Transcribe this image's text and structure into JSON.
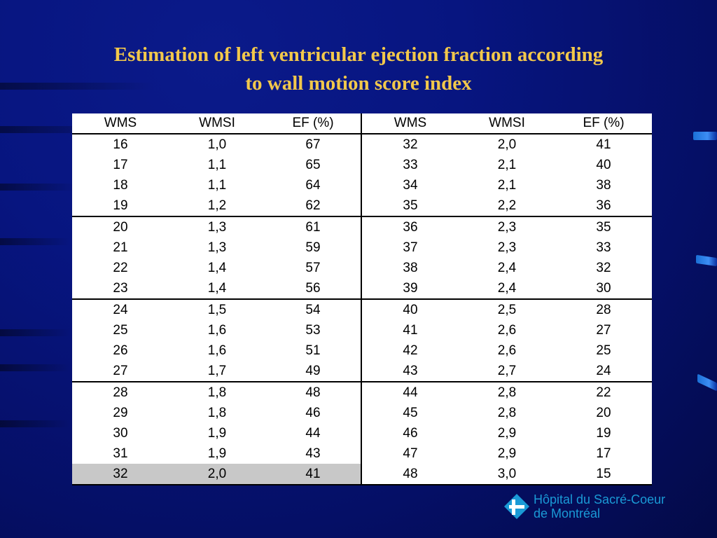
{
  "slide": {
    "title_line1": "Estimation of left ventricular ejection fraction according",
    "title_line2": "to wall motion score index"
  },
  "table": {
    "headers": [
      "WMS",
      "WMSI",
      "EF (%)",
      "WMS",
      "WMSI",
      "EF (%)"
    ],
    "rows": [
      [
        "16",
        "1,0",
        "67",
        "32",
        "2,0",
        "41"
      ],
      [
        "17",
        "1,1",
        "65",
        "33",
        "2,1",
        "40"
      ],
      [
        "18",
        "1,1",
        "64",
        "34",
        "2,1",
        "38"
      ],
      [
        "19",
        "1,2",
        "62",
        "35",
        "2,2",
        "36"
      ],
      [
        "20",
        "1,3",
        "61",
        "36",
        "2,3",
        "35"
      ],
      [
        "21",
        "1,3",
        "59",
        "37",
        "2,3",
        "33"
      ],
      [
        "22",
        "1,4",
        "57",
        "38",
        "2,4",
        "32"
      ],
      [
        "23",
        "1,4",
        "56",
        "39",
        "2,4",
        "30"
      ],
      [
        "24",
        "1,5",
        "54",
        "40",
        "2,5",
        "28"
      ],
      [
        "25",
        "1,6",
        "53",
        "41",
        "2,6",
        "27"
      ],
      [
        "26",
        "1,6",
        "51",
        "42",
        "2,6",
        "25"
      ],
      [
        "27",
        "1,7",
        "49",
        "43",
        "2,7",
        "24"
      ],
      [
        "28",
        "1,8",
        "48",
        "44",
        "2,8",
        "22"
      ],
      [
        "29",
        "1,8",
        "46",
        "45",
        "2,8",
        "20"
      ],
      [
        "30",
        "1,9",
        "44",
        "46",
        "2,9",
        "19"
      ],
      [
        "31",
        "1,9",
        "43",
        "47",
        "2,9",
        "17"
      ],
      [
        "32",
        "2,0",
        "41",
        "48",
        "3,0",
        "15"
      ]
    ],
    "highlight_color": "#c8c8c8"
  },
  "logo": {
    "line1": "Hôpital du Sacré-Coeur",
    "line2": "de Montréal",
    "color": "#1a9ad6"
  },
  "colors": {
    "title": "#f2c84b",
    "background": "#071580"
  }
}
